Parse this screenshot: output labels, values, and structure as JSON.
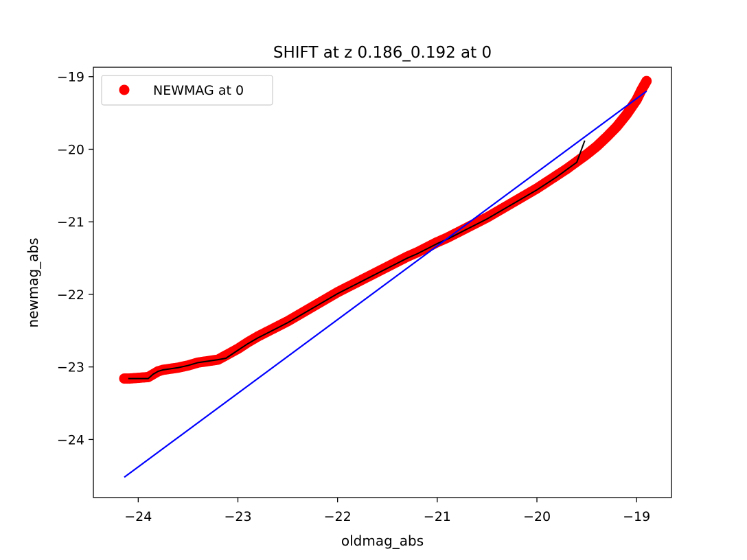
{
  "chart_data": {
    "type": "scatter",
    "title": "SHIFT at z 0.186_0.192 at 0",
    "xlabel": "oldmag_abs",
    "ylabel": "newmag_abs",
    "xlim": [
      -24.45,
      -18.65
    ],
    "ylim": [
      -24.8,
      -18.87
    ],
    "xticks": [
      -24,
      -23,
      -22,
      -21,
      -20,
      -19
    ],
    "yticks": [
      -19,
      -20,
      -21,
      -22,
      -23,
      -24
    ],
    "xtick_labels": [
      "−24",
      "−23",
      "−22",
      "−21",
      "−20",
      "−19"
    ],
    "ytick_labels": [
      "−19",
      "−20",
      "−21",
      "−22",
      "−23",
      "−24"
    ],
    "grid": false,
    "legend": {
      "position": "top-left",
      "entries": [
        "NEWMAG at 0"
      ]
    },
    "colors": {
      "scatter": "#ff0000",
      "fit": "#000000",
      "reference": "#0000ff"
    },
    "series": [
      {
        "name": "NEWMAG at 0",
        "kind": "scatter",
        "x": [
          -24.14,
          -24.09,
          -23.9,
          -23.85,
          -23.8,
          -23.75,
          -23.7,
          -23.6,
          -23.5,
          -23.4,
          -23.3,
          -23.2,
          -23.12,
          -23.0,
          -22.9,
          -22.8,
          -22.7,
          -22.6,
          -22.5,
          -22.4,
          -22.3,
          -22.2,
          -22.1,
          -22.0,
          -21.9,
          -21.8,
          -21.7,
          -21.6,
          -21.5,
          -21.4,
          -21.3,
          -21.2,
          -21.1,
          -21.0,
          -20.9,
          -20.8,
          -20.7,
          -20.6,
          -20.5,
          -20.4,
          -20.3,
          -20.2,
          -20.1,
          -20.0,
          -19.9,
          -19.8,
          -19.7,
          -19.6,
          -19.5,
          -19.4,
          -19.3,
          -19.2,
          -19.1,
          -19.0,
          -18.95,
          -18.9
        ],
        "y": [
          -23.16,
          -23.16,
          -23.14,
          -23.1,
          -23.06,
          -23.04,
          -23.03,
          -23.01,
          -22.98,
          -22.94,
          -22.92,
          -22.9,
          -22.84,
          -22.75,
          -22.66,
          -22.58,
          -22.51,
          -22.44,
          -22.37,
          -22.29,
          -22.21,
          -22.13,
          -22.05,
          -21.97,
          -21.9,
          -21.83,
          -21.76,
          -21.69,
          -21.62,
          -21.55,
          -21.48,
          -21.42,
          -21.35,
          -21.28,
          -21.22,
          -21.15,
          -21.08,
          -21.01,
          -20.94,
          -20.86,
          -20.78,
          -20.7,
          -20.62,
          -20.54,
          -20.45,
          -20.36,
          -20.27,
          -20.17,
          -20.07,
          -19.96,
          -19.83,
          -19.69,
          -19.52,
          -19.32,
          -19.18,
          -19.06
        ]
      },
      {
        "kind": "line",
        "x": [
          -24.1,
          -23.9,
          -23.85,
          -23.8,
          -23.75,
          -23.7,
          -23.6,
          -23.5,
          -23.4,
          -23.3,
          -23.2,
          -23.12,
          -23.0,
          -22.9,
          -22.8,
          -22.7,
          -22.6,
          -22.5,
          -22.4,
          -22.3,
          -22.2,
          -22.1,
          -22.0,
          -21.9,
          -21.8,
          -21.7,
          -21.6,
          -21.5,
          -21.4,
          -21.3,
          -21.2,
          -21.1,
          -21.0,
          -20.9,
          -20.8,
          -20.7,
          -20.6,
          -20.5,
          -20.4,
          -20.3,
          -20.2,
          -20.1,
          -20.0,
          -19.9,
          -19.8,
          -19.7,
          -19.6,
          -19.52
        ],
        "y": [
          -23.16,
          -23.16,
          -23.1,
          -23.06,
          -23.04,
          -23.03,
          -23.01,
          -22.98,
          -22.94,
          -22.92,
          -22.9,
          -22.88,
          -22.77,
          -22.68,
          -22.6,
          -22.53,
          -22.46,
          -22.39,
          -22.31,
          -22.23,
          -22.15,
          -22.07,
          -21.99,
          -21.92,
          -21.85,
          -21.78,
          -21.71,
          -21.64,
          -21.57,
          -21.5,
          -21.44,
          -21.37,
          -21.3,
          -21.24,
          -21.17,
          -21.1,
          -21.03,
          -20.96,
          -20.88,
          -20.8,
          -20.72,
          -20.64,
          -20.56,
          -20.47,
          -20.38,
          -20.28,
          -20.18,
          -19.88
        ]
      },
      {
        "kind": "line",
        "x": [
          -24.14,
          -18.9
        ],
        "y": [
          -24.52,
          -19.2
        ]
      }
    ]
  }
}
